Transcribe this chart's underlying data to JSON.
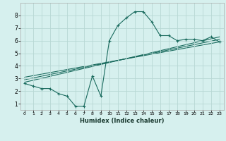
{
  "title": "",
  "xlabel": "Humidex (Indice chaleur)",
  "bg_color": "#d6f0ee",
  "grid_color": "#b8d8d4",
  "line_color": "#1a6b5e",
  "xlim": [
    -0.5,
    23.5
  ],
  "ylim": [
    0.5,
    9.0
  ],
  "xticks": [
    0,
    1,
    2,
    3,
    4,
    5,
    6,
    7,
    8,
    9,
    10,
    11,
    12,
    13,
    14,
    15,
    16,
    17,
    18,
    19,
    20,
    21,
    22,
    23
  ],
  "yticks": [
    1,
    2,
    3,
    4,
    5,
    6,
    7,
    8
  ],
  "curve_x": [
    0,
    1,
    2,
    3,
    4,
    5,
    6,
    7,
    8,
    9,
    10,
    11,
    12,
    13,
    14,
    15,
    16,
    17,
    18,
    19,
    20,
    21,
    22,
    23
  ],
  "curve_y": [
    2.6,
    2.4,
    2.2,
    2.2,
    1.8,
    1.6,
    0.8,
    0.8,
    3.2,
    1.6,
    6.0,
    7.2,
    7.8,
    8.3,
    8.3,
    7.5,
    6.4,
    6.4,
    6.0,
    6.1,
    6.1,
    6.0,
    6.3,
    5.9
  ],
  "line1_x": [
    0,
    23
  ],
  "line1_y": [
    2.7,
    6.3
  ],
  "line2_x": [
    0,
    23
  ],
  "line2_y": [
    2.9,
    6.1
  ],
  "line3_x": [
    0,
    23
  ],
  "line3_y": [
    3.1,
    5.9
  ]
}
